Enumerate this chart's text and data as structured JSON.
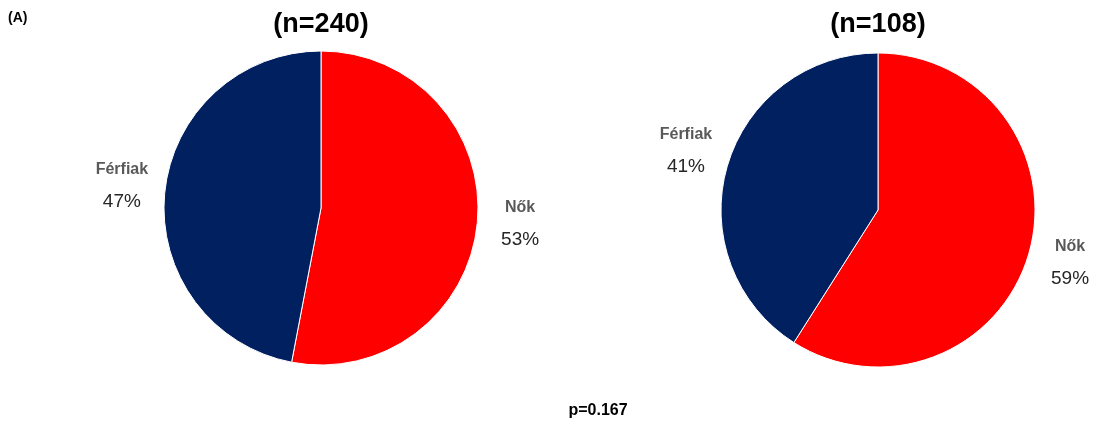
{
  "chart_data": [
    {
      "type": "pie",
      "title": "(n=240)",
      "categories": [
        "Nők",
        "Férfiak"
      ],
      "values": [
        53,
        47
      ],
      "value_labels": [
        "53%",
        "47%"
      ],
      "colors": [
        "#ff0000",
        "#002060"
      ],
      "annotations": [
        "(A)",
        "p=0.167"
      ]
    },
    {
      "type": "pie",
      "title": "(n=108)",
      "categories": [
        "Nők",
        "Férfiak"
      ],
      "values": [
        59,
        41
      ],
      "value_labels": [
        "59%",
        "41%"
      ],
      "colors": [
        "#ff0000",
        "#002060"
      ]
    }
  ]
}
